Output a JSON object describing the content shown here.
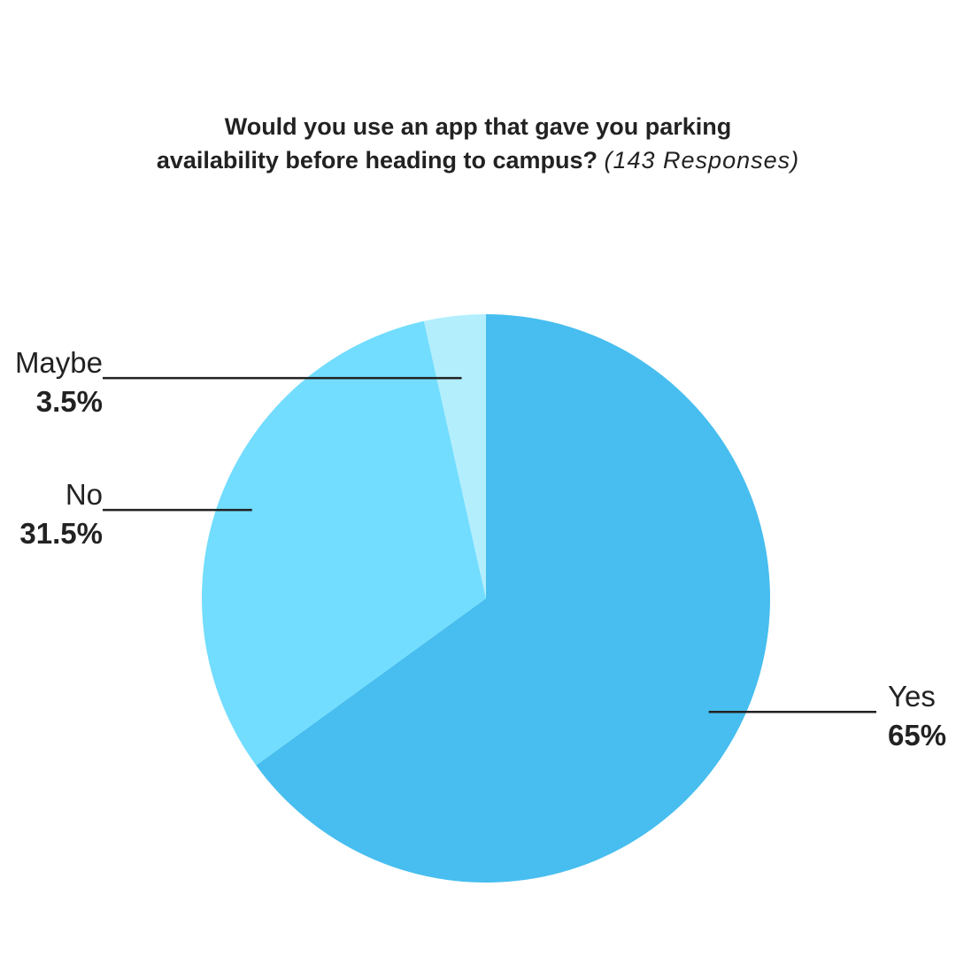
{
  "chart_data": {
    "type": "pie",
    "title_line1": "Would you use an app that gave you parking",
    "title_line2": "availability before heading to campus?",
    "subtitle": "(143 Responses)",
    "start_angle_deg": 0,
    "direction": "clockwise",
    "slices": [
      {
        "label": "Yes",
        "value": 65,
        "value_label": "65%",
        "color": "#47BEEF",
        "label_side": "right"
      },
      {
        "label": "No",
        "value": 31.5,
        "value_label": "31.5%",
        "color": "#72DDFE",
        "label_side": "left"
      },
      {
        "label": "Maybe",
        "value": 3.5,
        "value_label": "3.5%",
        "color": "#B3EEFD",
        "label_side": "left"
      }
    ]
  }
}
